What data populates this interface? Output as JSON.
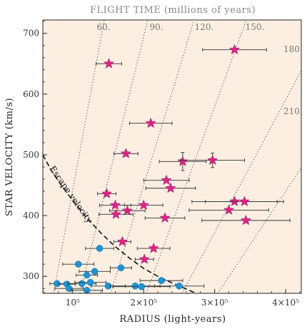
{
  "chart_data": {
    "type": "scatter",
    "top_title": "FLIGHT TIME (millions of years)",
    "xlabel": "RADIUS (light-years)",
    "ylabel": "STAR VELOCITY (km/s)",
    "xlim": [
      58000,
      422000
    ],
    "ylim": [
      272,
      722
    ],
    "x_ticks": [
      {
        "value": 100000,
        "label": "10⁵"
      },
      {
        "value": 200000,
        "label": "2×10⁵"
      },
      {
        "value": 300000,
        "label": "3×10⁵"
      },
      {
        "value": 400000,
        "label": "4×10⁵"
      }
    ],
    "y_ticks": [
      300,
      400,
      500,
      600,
      700
    ],
    "flight_time_lines": [
      {
        "label": "60.",
        "value": 60
      },
      {
        "label": "90.",
        "value": 90
      },
      {
        "label": "120.",
        "value": 120
      },
      {
        "label": "150.",
        "value": 150
      },
      {
        "label": "180",
        "value": 180
      },
      {
        "label": "210",
        "value": 210
      }
    ],
    "escape_velocity_label": "Escape velocity",
    "escape_curve": [
      {
        "x": 58000,
        "y": 500
      },
      {
        "x": 70000,
        "y": 474
      },
      {
        "x": 85000,
        "y": 448
      },
      {
        "x": 100000,
        "y": 425
      },
      {
        "x": 120000,
        "y": 396
      },
      {
        "x": 140000,
        "y": 371
      },
      {
        "x": 160000,
        "y": 349
      },
      {
        "x": 180000,
        "y": 330
      },
      {
        "x": 200000,
        "y": 313
      },
      {
        "x": 220000,
        "y": 300
      },
      {
        "x": 240000,
        "y": 289
      },
      {
        "x": 260000,
        "y": 279
      },
      {
        "x": 272000,
        "y": 273
      }
    ],
    "series": [
      {
        "marker": "star",
        "color": "#e0218a",
        "points": [
          {
            "x": 328000,
            "y": 673,
            "xerr": 45000
          },
          {
            "x": 151000,
            "y": 650,
            "xerr": 18000
          },
          {
            "x": 210000,
            "y": 552,
            "xerr": 30000
          },
          {
            "x": 175000,
            "y": 502,
            "xerr": 17000
          },
          {
            "x": 255000,
            "y": 489,
            "xerr": 33000,
            "yerr": 15
          },
          {
            "x": 297000,
            "y": 491,
            "xerr": 45000,
            "yerr": 12
          },
          {
            "x": 232000,
            "y": 458,
            "xerr": 32000
          },
          {
            "x": 238000,
            "y": 445,
            "xerr": 35000
          },
          {
            "x": 148000,
            "y": 436,
            "xerr": 13000
          },
          {
            "x": 160000,
            "y": 417,
            "xerr": 22000
          },
          {
            "x": 200000,
            "y": 417,
            "xerr": 27000
          },
          {
            "x": 177000,
            "y": 408,
            "xerr": 25000
          },
          {
            "x": 161000,
            "y": 402,
            "xerr": 24000
          },
          {
            "x": 230000,
            "y": 396,
            "xerr": 28000
          },
          {
            "x": 328000,
            "y": 423,
            "xerr": 60000
          },
          {
            "x": 342000,
            "y": 423,
            "xerr": 55000
          },
          {
            "x": 320000,
            "y": 409,
            "xerr": 56000
          },
          {
            "x": 344000,
            "y": 392,
            "xerr": 62000
          },
          {
            "x": 170000,
            "y": 357,
            "xerr": 12000
          },
          {
            "x": 214000,
            "y": 346,
            "xerr": 23000
          },
          {
            "x": 201000,
            "y": 328,
            "xerr": 13000
          }
        ]
      },
      {
        "marker": "circle",
        "color": "#1c95d8",
        "points": [
          {
            "x": 138000,
            "y": 346,
            "xerr": 20000
          },
          {
            "x": 108000,
            "y": 320,
            "xerr": 22000
          },
          {
            "x": 131000,
            "y": 308,
            "xerr": 22000
          },
          {
            "x": 120000,
            "y": 302,
            "xerr": 15000
          },
          {
            "x": 168000,
            "y": 314,
            "xerr": 15000
          },
          {
            "x": 78000,
            "y": 288,
            "xerr": 10000
          },
          {
            "x": 92000,
            "y": 287,
            "xerr": 12000
          },
          {
            "x": 113000,
            "y": 288,
            "xerr": 20000
          },
          {
            "x": 125000,
            "y": 290,
            "xerr": 22000
          },
          {
            "x": 150000,
            "y": 284,
            "xerr": 24000
          },
          {
            "x": 95000,
            "y": 280,
            "xerr": 20000
          },
          {
            "x": 120000,
            "y": 277,
            "xerr": 22000
          },
          {
            "x": 188000,
            "y": 284,
            "xerr": 35000
          },
          {
            "x": 197000,
            "y": 283,
            "xerr": 40000
          },
          {
            "x": 225000,
            "y": 293,
            "xerr": 30000
          },
          {
            "x": 250000,
            "y": 284,
            "xerr": 35000
          }
        ]
      }
    ]
  }
}
